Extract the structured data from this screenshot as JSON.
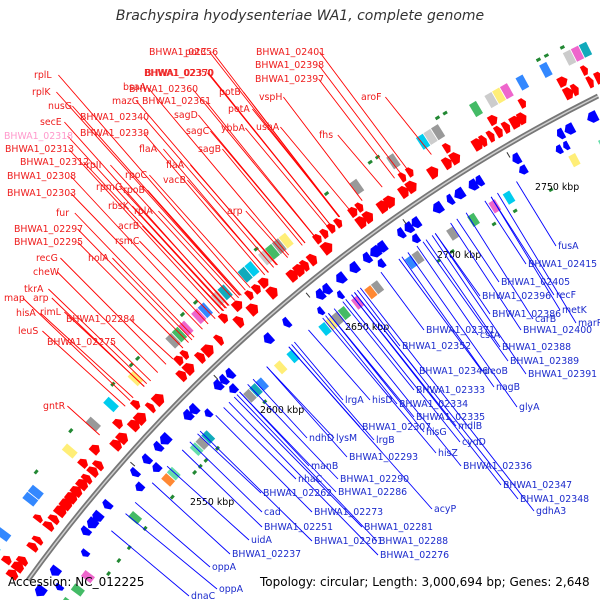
{
  "title": "Brachyspira hyodysenteriae WA1, complete genome",
  "footer": {
    "accession": "Accession: NC_012225",
    "summary": "Topology: circular; Length: 3,000,694 bp; Genes: 2,648"
  },
  "colors": {
    "forward": "#ff0000",
    "reverse": "#0000ff",
    "forward_label": "#ee1c1c",
    "reverse_label": "#1c2bcc",
    "highlight_label": "#ff99cc",
    "backbone": "#888888",
    "tick": "#1a8a1a"
  },
  "tick_labels": [
    "2550 kbp",
    "2600 kbp",
    "2650 kbp",
    "2700 kbp",
    "2750 kbp"
  ],
  "forward_labels": [
    {
      "text": "BHWA1_02356",
      "right": true
    },
    {
      "text": "potC"
    },
    {
      "text": "BHWA1_02401"
    },
    {
      "text": "rplL",
      "right": true
    },
    {
      "text": "BHWA1_02350",
      "right": true
    },
    {
      "text": "BHWA1_02370"
    },
    {
      "text": "BHWA1_02398"
    },
    {
      "text": "bsaA",
      "right": true
    },
    {
      "text": "BHWA1_02360"
    },
    {
      "text": "potB"
    },
    {
      "text": "BHWA1_02397"
    },
    {
      "text": "rplK",
      "right": true
    },
    {
      "text": "mazG",
      "right": true
    },
    {
      "text": "BHWA1_02361"
    },
    {
      "text": "vspH"
    },
    {
      "text": "aroF"
    },
    {
      "text": "nusG",
      "right": true
    },
    {
      "text": "potA"
    },
    {
      "text": "sagD"
    },
    {
      "text": "secE",
      "right": true
    },
    {
      "text": "BHWA1_02340",
      "right": true
    },
    {
      "text": "ybbA"
    },
    {
      "text": "ushA"
    },
    {
      "text": "BHWA1_02318",
      "right": true,
      "highlight": true
    },
    {
      "text": "BHWA1_02339",
      "right": true
    },
    {
      "text": "sagC"
    },
    {
      "text": "fhs"
    },
    {
      "text": "BHWA1_02313",
      "right": true
    },
    {
      "text": "flaA",
      "right": true
    },
    {
      "text": "sagB"
    },
    {
      "text": "BHWA1_02312",
      "right": true
    },
    {
      "text": "rpII",
      "right": true
    },
    {
      "text": "flaA"
    },
    {
      "text": "BHWA1_02308",
      "right": true
    },
    {
      "text": "rpoC"
    },
    {
      "text": "vacB"
    },
    {
      "text": "rpmG",
      "right": true
    },
    {
      "text": "rpoB",
      "right": true
    },
    {
      "text": "BHWA1_02303",
      "right": true
    },
    {
      "text": "rbsK",
      "right": true
    },
    {
      "text": "fur",
      "right": true
    },
    {
      "text": "rplA",
      "right": true
    },
    {
      "text": "arp"
    },
    {
      "text": "acrB",
      "right": true
    },
    {
      "text": "BHWA1_02297",
      "right": true
    },
    {
      "text": "rsmC",
      "right": true
    },
    {
      "text": "BHWA1_02295",
      "right": true
    },
    {
      "text": "holA",
      "right": true
    },
    {
      "text": "recG",
      "right": true
    },
    {
      "text": "cheW",
      "right": true
    },
    {
      "text": "tkrA",
      "right": true
    },
    {
      "text": "map"
    },
    {
      "text": "arp",
      "right": true
    },
    {
      "text": "rimL",
      "right": true
    },
    {
      "text": "hisA",
      "right": true
    },
    {
      "text": "BHWA1_02284",
      "right": true
    },
    {
      "text": "leuS",
      "right": true
    },
    {
      "text": "BHWA1_02275",
      "right": true
    },
    {
      "text": "gntR",
      "right": true
    }
  ],
  "reverse_labels": [
    {
      "text": "fusA"
    },
    {
      "text": "BHWA1_02415"
    },
    {
      "text": "BHWA1_02405"
    },
    {
      "text": "recF"
    },
    {
      "text": "BHWA1_02396"
    },
    {
      "text": "metK"
    },
    {
      "text": "carB"
    },
    {
      "text": "BHWA1_02386"
    },
    {
      "text": "marR"
    },
    {
      "text": "BHWA1_02371"
    },
    {
      "text": "cstA"
    },
    {
      "text": "BHWA1_02400"
    },
    {
      "text": "BHWA1_02352"
    },
    {
      "text": "BHWA1_02388"
    },
    {
      "text": "BHWA1_02389"
    },
    {
      "text": "BHWA1_02346"
    },
    {
      "text": "deoB"
    },
    {
      "text": "BHWA1_02391"
    },
    {
      "text": "nagB"
    },
    {
      "text": "lrgA"
    },
    {
      "text": "BHWA1_02333"
    },
    {
      "text": "hisD"
    },
    {
      "text": "BHWA1_02334"
    },
    {
      "text": "glyA"
    },
    {
      "text": "BHWA1_02335"
    },
    {
      "text": "BHWA1_02307"
    },
    {
      "text": "mdlB"
    },
    {
      "text": "lysM"
    },
    {
      "text": "hisG"
    },
    {
      "text": "ndhD"
    },
    {
      "text": "lrgB"
    },
    {
      "text": "cydD"
    },
    {
      "text": "hisZ"
    },
    {
      "text": "BHWA1_02293"
    },
    {
      "text": "manB"
    },
    {
      "text": "BHWA1_02336"
    },
    {
      "text": "nhaC"
    },
    {
      "text": "BHWA1_02290"
    },
    {
      "text": "BHWA1_02347"
    },
    {
      "text": "BHWA1_02262"
    },
    {
      "text": "BHWA1_02286"
    },
    {
      "text": "acyP"
    },
    {
      "text": "BHWA1_02348"
    },
    {
      "text": "cad"
    },
    {
      "text": "BHWA1_02273"
    },
    {
      "text": "gdhA3"
    },
    {
      "text": "BHWA1_02251"
    },
    {
      "text": "BHWA1_02281"
    },
    {
      "text": "uidA"
    },
    {
      "text": "BHWA1_02261"
    },
    {
      "text": "BHWA1_02288"
    },
    {
      "text": "BHWA1_02237"
    },
    {
      "text": "BHWA1_02276"
    },
    {
      "text": "oppA"
    },
    {
      "text": "oppA"
    },
    {
      "text": "dnaC"
    }
  ]
}
